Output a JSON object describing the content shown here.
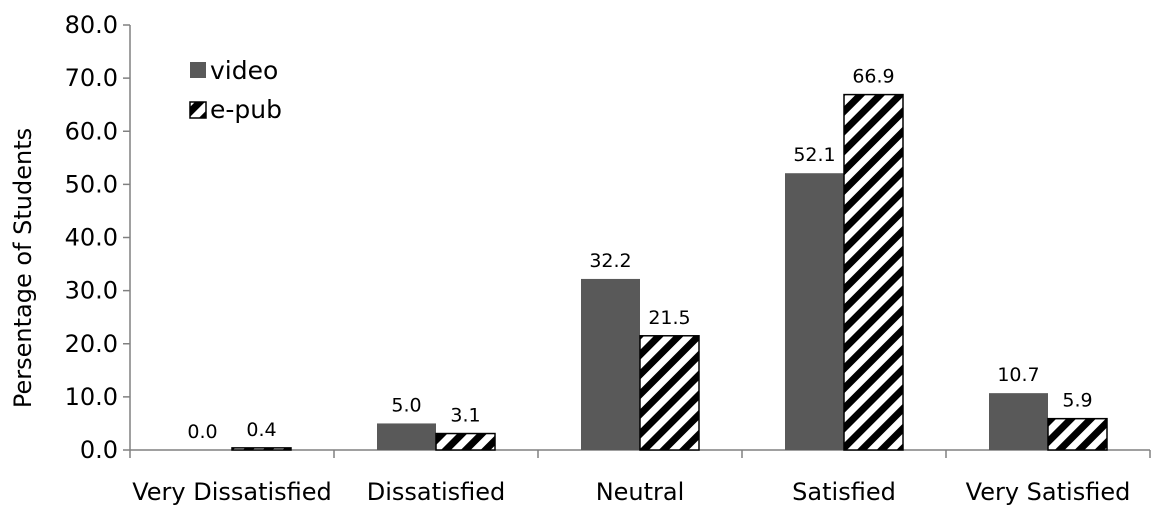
{
  "chart_data": {
    "type": "bar",
    "title": "",
    "xlabel": "",
    "ylabel": "Persentage of Students",
    "ylim": [
      0,
      80
    ],
    "ytick_step": 10,
    "ytick_labels": [
      "0.0",
      "10.0",
      "20.0",
      "30.0",
      "40.0",
      "50.0",
      "60.0",
      "70.0",
      "80.0"
    ],
    "categories": [
      "Very Dissatisfied",
      "Dissatisfied",
      "Neutral",
      "Satisfied",
      "Very Satisfied"
    ],
    "series": [
      {
        "name": "video",
        "values": [
          0.0,
          5.0,
          32.2,
          52.1,
          10.7
        ],
        "labels": [
          "0.0",
          "5.0",
          "32.2",
          "52.1",
          "10.7"
        ],
        "color": "#595959",
        "fill": "solid"
      },
      {
        "name": "e-pub",
        "values": [
          0.4,
          3.1,
          21.5,
          66.9,
          5.9
        ],
        "labels": [
          "0.4",
          "3.1",
          "21.5",
          "66.9",
          "5.9"
        ],
        "color": "#000000",
        "fill": "diagonal-hatch"
      }
    ],
    "legend": "top-left",
    "grid": false
  }
}
